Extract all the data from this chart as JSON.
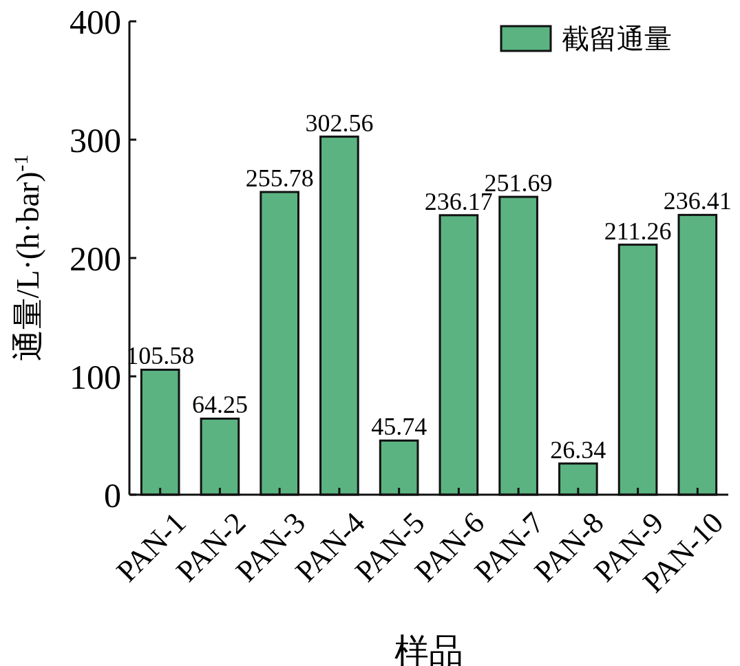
{
  "chart_data": {
    "type": "bar",
    "xlabel": "样品",
    "ylabel": "通量/L·(h·bar)$^{-1}$",
    "categories": [
      "PAN-1",
      "PAN-2",
      "PAN-3",
      "PAN-4",
      "PAN-5",
      "PAN-6",
      "PAN-7",
      "PAN-8",
      "PAN-9",
      "PAN-10"
    ],
    "series": [
      {
        "name": "截留通量",
        "color": "#5bb381",
        "values": [
          105.58,
          64.25,
          255.78,
          302.56,
          45.74,
          236.17,
          251.69,
          26.34,
          211.26,
          236.41
        ]
      }
    ],
    "ylim": [
      0,
      400
    ],
    "yticks": [
      0,
      100,
      200,
      300,
      400
    ],
    "data_labels": true,
    "legend": "top right",
    "grid": false
  }
}
